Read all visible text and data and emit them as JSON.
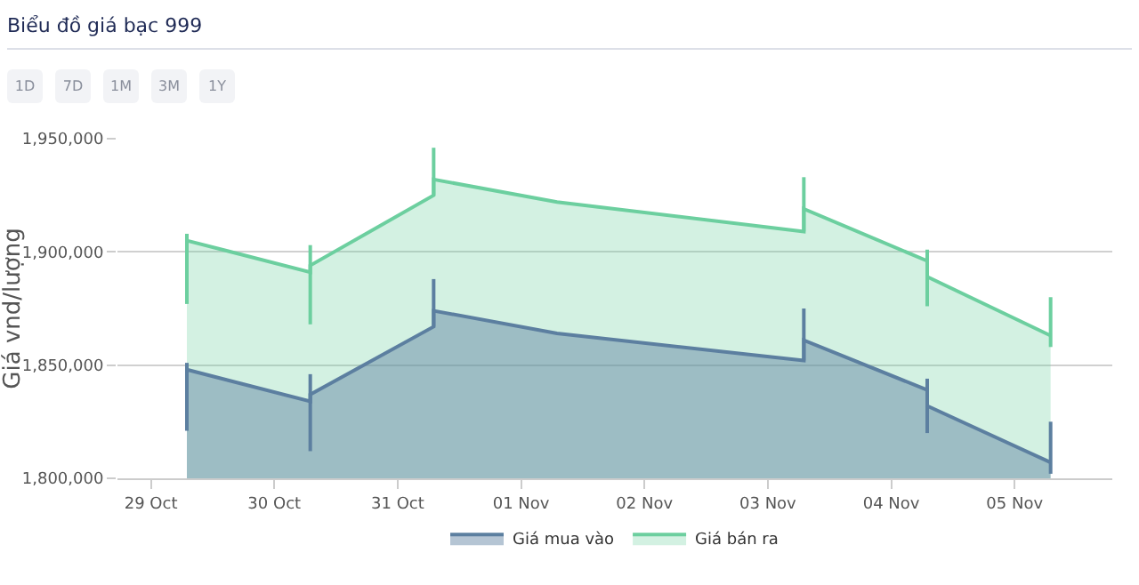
{
  "chart_data": {
    "type": "area",
    "title": "Biểu đồ giá bạc 999",
    "ylabel": "Giá vnd/lượng",
    "annotations": [
      "1D",
      "7D",
      "1M",
      "3M",
      "1Y"
    ],
    "xlim": [
      "--10-28T17:30",
      "--11-05T19:00"
    ],
    "xticks": [
      {
        "value": "--10-29",
        "label": "29 Oct"
      },
      {
        "value": "--10-30",
        "label": "30 Oct"
      },
      {
        "value": "--10-31",
        "label": "31 Oct"
      },
      {
        "value": "--11-01",
        "label": "01 Nov"
      },
      {
        "value": "--11-02",
        "label": "02 Nov"
      },
      {
        "value": "--11-03",
        "label": "03 Nov"
      },
      {
        "value": "--11-04",
        "label": "04 Nov"
      },
      {
        "value": "--11-05",
        "label": "05 Nov"
      }
    ],
    "ylim": [
      1800000,
      1950000
    ],
    "yticks": [
      {
        "value": 1800000,
        "label": "1,800,000"
      },
      {
        "value": 1850000,
        "label": "1,850,000"
      },
      {
        "value": 1900000,
        "label": "1,900,000"
      },
      {
        "value": 1950000,
        "label": "1,950,000"
      }
    ],
    "grid": "y",
    "legend": "bottom",
    "marker": "none",
    "line_style": "solid",
    "series": [
      {
        "name": "Giá bán ra",
        "color": "#6ccf9f",
        "x": [
          "--10-29T07:00",
          "--10-30T07:00",
          "--10-30T07:00",
          "--10-31T07:00",
          "--10-31T07:00",
          "--11-01T07:00",
          "--11-03T07:00",
          "--11-03T07:00",
          "--11-04T07:00",
          "--11-04T07:00",
          "--11-05T07:00"
        ],
        "values": [
          1905000,
          1891000,
          1894000,
          1925000,
          1932000,
          1922000,
          1909000,
          1919000,
          1896000,
          1889000,
          1863000
        ],
        "errors": [
          [
            1877000,
            1908000
          ],
          [
            1868000,
            1903000
          ],
          null,
          [
            1925000,
            1946000
          ],
          null,
          null,
          [
            1909000,
            1933000
          ],
          null,
          [
            1876000,
            1901000
          ],
          null,
          [
            1858000,
            1880000
          ]
        ]
      },
      {
        "name": "Giá mua vào",
        "color": "#5c7fa0",
        "x": [
          "--10-29T07:00",
          "--10-30T07:00",
          "--10-30T07:00",
          "--10-31T07:00",
          "--10-31T07:00",
          "--11-01T07:00",
          "--11-03T07:00",
          "--11-03T07:00",
          "--11-04T07:00",
          "--11-04T07:00",
          "--11-05T07:00"
        ],
        "values": [
          1848000,
          1834000,
          1837000,
          1867000,
          1874000,
          1864000,
          1852000,
          1861000,
          1839000,
          1832000,
          1807000
        ],
        "errors": [
          [
            1821000,
            1851000
          ],
          [
            1812000,
            1846000
          ],
          null,
          [
            1867000,
            1888000
          ],
          null,
          null,
          [
            1852000,
            1875000
          ],
          null,
          [
            1820000,
            1844000
          ],
          null,
          [
            1802000,
            1825000
          ]
        ]
      }
    ]
  }
}
